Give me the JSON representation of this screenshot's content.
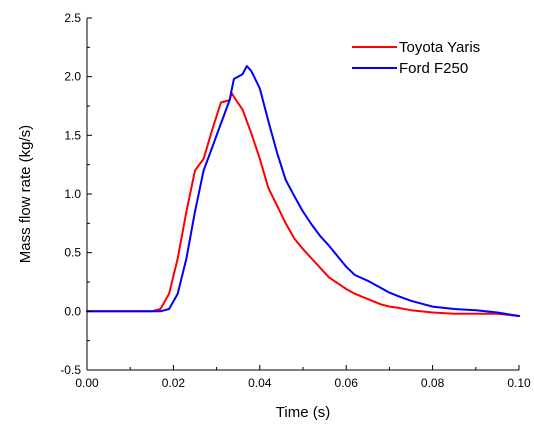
{
  "chart_data": {
    "type": "line",
    "title": "",
    "xlabel": "Time (s)",
    "ylabel": "Mass flow rate (kg/s)",
    "xlim": [
      0.0,
      0.1
    ],
    "ylim": [
      -0.5,
      2.5
    ],
    "x_ticks": [
      0.0,
      0.02,
      0.04,
      0.06,
      0.08,
      0.1
    ],
    "x_tick_labels": [
      "0.00",
      "0.02",
      "0.04",
      "0.06",
      "0.08",
      "0.10"
    ],
    "y_ticks": [
      -0.5,
      0.0,
      0.5,
      1.0,
      1.5,
      2.0,
      2.5
    ],
    "y_tick_labels": [
      "-0.5",
      "0.0",
      "0.5",
      "1.0",
      "1.5",
      "2.0",
      "2.5"
    ],
    "grid": false,
    "legend_position": "top-right",
    "series": [
      {
        "name": "Toyota Yaris",
        "color": "#ff0000",
        "points": [
          [
            0.0,
            0.0
          ],
          [
            0.01,
            0.0
          ],
          [
            0.015,
            0.0
          ],
          [
            0.017,
            0.02
          ],
          [
            0.019,
            0.15
          ],
          [
            0.021,
            0.45
          ],
          [
            0.023,
            0.85
          ],
          [
            0.025,
            1.2
          ],
          [
            0.027,
            1.3
          ],
          [
            0.029,
            1.55
          ],
          [
            0.031,
            1.78
          ],
          [
            0.033,
            1.8
          ],
          [
            0.0335,
            1.86
          ],
          [
            0.0345,
            1.8
          ],
          [
            0.036,
            1.72
          ],
          [
            0.038,
            1.52
          ],
          [
            0.04,
            1.3
          ],
          [
            0.042,
            1.05
          ],
          [
            0.044,
            0.9
          ],
          [
            0.046,
            0.75
          ],
          [
            0.048,
            0.62
          ],
          [
            0.05,
            0.53
          ],
          [
            0.052,
            0.45
          ],
          [
            0.054,
            0.37
          ],
          [
            0.056,
            0.29
          ],
          [
            0.058,
            0.24
          ],
          [
            0.06,
            0.19
          ],
          [
            0.062,
            0.15
          ],
          [
            0.064,
            0.12
          ],
          [
            0.066,
            0.09
          ],
          [
            0.068,
            0.06
          ],
          [
            0.07,
            0.04
          ],
          [
            0.072,
            0.03
          ],
          [
            0.075,
            0.01
          ],
          [
            0.08,
            -0.01
          ],
          [
            0.085,
            -0.02
          ],
          [
            0.09,
            -0.02
          ],
          [
            0.095,
            -0.02
          ],
          [
            0.1,
            -0.04
          ]
        ]
      },
      {
        "name": "Ford F250",
        "color": "#0000ff",
        "points": [
          [
            0.0,
            0.0
          ],
          [
            0.01,
            0.0
          ],
          [
            0.017,
            0.0
          ],
          [
            0.019,
            0.02
          ],
          [
            0.021,
            0.15
          ],
          [
            0.023,
            0.45
          ],
          [
            0.025,
            0.85
          ],
          [
            0.027,
            1.2
          ],
          [
            0.029,
            1.4
          ],
          [
            0.031,
            1.6
          ],
          [
            0.033,
            1.8
          ],
          [
            0.034,
            1.98
          ],
          [
            0.036,
            2.02
          ],
          [
            0.037,
            2.09
          ],
          [
            0.038,
            2.05
          ],
          [
            0.04,
            1.9
          ],
          [
            0.042,
            1.62
          ],
          [
            0.044,
            1.35
          ],
          [
            0.046,
            1.12
          ],
          [
            0.048,
            0.98
          ],
          [
            0.05,
            0.85
          ],
          [
            0.052,
            0.74
          ],
          [
            0.054,
            0.64
          ],
          [
            0.056,
            0.56
          ],
          [
            0.058,
            0.47
          ],
          [
            0.06,
            0.38
          ],
          [
            0.062,
            0.31
          ],
          [
            0.065,
            0.26
          ],
          [
            0.068,
            0.2
          ],
          [
            0.07,
            0.16
          ],
          [
            0.072,
            0.13
          ],
          [
            0.075,
            0.09
          ],
          [
            0.078,
            0.06
          ],
          [
            0.08,
            0.04
          ],
          [
            0.085,
            0.02
          ],
          [
            0.09,
            0.01
          ],
          [
            0.095,
            -0.01
          ],
          [
            0.1,
            -0.04
          ]
        ]
      }
    ]
  }
}
